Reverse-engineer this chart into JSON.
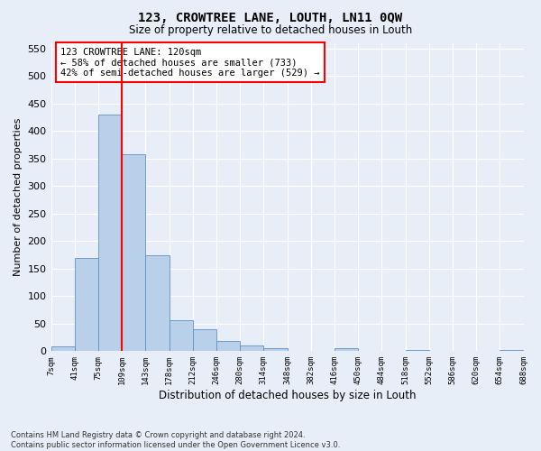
{
  "title": "123, CROWTREE LANE, LOUTH, LN11 0QW",
  "subtitle": "Size of property relative to detached houses in Louth",
  "xlabel": "Distribution of detached houses by size in Louth",
  "ylabel": "Number of detached properties",
  "footer_line1": "Contains HM Land Registry data © Crown copyright and database right 2024.",
  "footer_line2": "Contains public sector information licensed under the Open Government Licence v3.0.",
  "bar_color": "#b8d0ea",
  "bar_edge_color": "#6090c0",
  "background_color": "#e8eef8",
  "grid_color": "#ffffff",
  "annotation_text": "123 CROWTREE LANE: 120sqm\n← 58% of detached houses are smaller (733)\n42% of semi-detached houses are larger (529) →",
  "annotation_box_color": "white",
  "annotation_box_edge_color": "red",
  "red_line_index": 3,
  "bin_labels": [
    "7sqm",
    "41sqm",
    "75sqm",
    "109sqm",
    "143sqm",
    "178sqm",
    "212sqm",
    "246sqm",
    "280sqm",
    "314sqm",
    "348sqm",
    "382sqm",
    "416sqm",
    "450sqm",
    "484sqm",
    "518sqm",
    "552sqm",
    "586sqm",
    "620sqm",
    "654sqm",
    "688sqm"
  ],
  "bar_heights": [
    8,
    170,
    430,
    358,
    175,
    57,
    40,
    19,
    10,
    5,
    1,
    0,
    5,
    0,
    0,
    3,
    0,
    0,
    0,
    3
  ],
  "ylim": [
    0,
    560
  ],
  "yticks": [
    0,
    50,
    100,
    150,
    200,
    250,
    300,
    350,
    400,
    450,
    500,
    550
  ]
}
